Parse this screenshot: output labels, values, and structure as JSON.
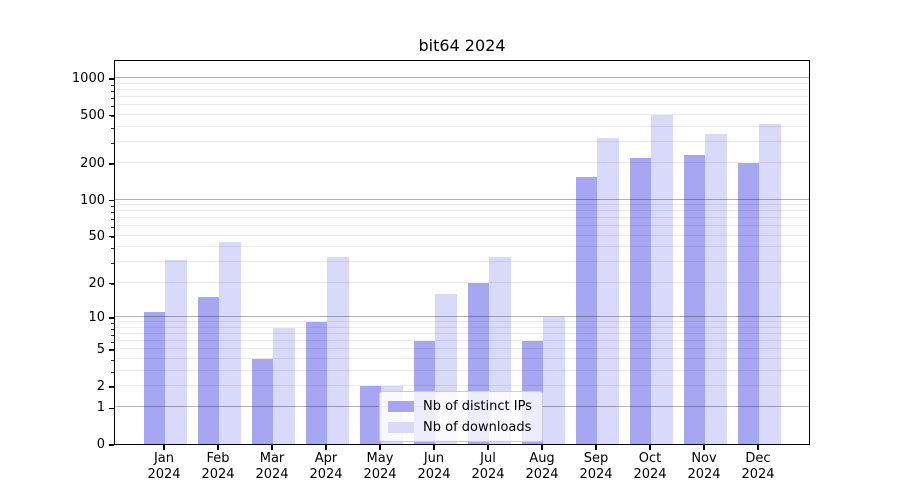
{
  "title": "bit64 2024",
  "legend": {
    "items": [
      {
        "label": "Nb of distinct IPs"
      },
      {
        "label": "Nb of downloads"
      }
    ]
  },
  "chart_data": {
    "type": "bar",
    "title": "bit64 2024",
    "categories": [
      "Jan",
      "Feb",
      "Mar",
      "Apr",
      "May",
      "Jun",
      "Jul",
      "Aug",
      "Sep",
      "Oct",
      "Nov",
      "Dec"
    ],
    "category_year": "2024",
    "series": [
      {
        "name": "Nb of distinct IPs",
        "color": "#a6a6f2",
        "values": [
          11,
          15,
          4,
          9,
          2,
          6,
          20,
          6,
          155,
          220,
          235,
          200
        ]
      },
      {
        "name": "Nb of downloads",
        "color": "#d9d9fa",
        "values": [
          31,
          44,
          8,
          33,
          2,
          16,
          33,
          10,
          325,
          500,
          350,
          420
        ]
      }
    ],
    "xlabel": "",
    "ylabel": "",
    "yscale": "log1p",
    "ylim": [
      0,
      1434
    ],
    "ytick_values": [
      0,
      1,
      2,
      5,
      10,
      20,
      50,
      100,
      200,
      500,
      1000
    ],
    "ytick_labels": [
      "0",
      "1",
      "2",
      "5",
      "10",
      "20",
      "50",
      "100",
      "200",
      "500",
      "1000"
    ],
    "grid": {
      "on": true,
      "major_values": [
        1,
        10,
        100,
        1000
      ],
      "major_color": "rgba(0,0,0,0.30)",
      "minor_color": "rgba(0,0,0,0.08)"
    },
    "legend_position": "lower center"
  }
}
